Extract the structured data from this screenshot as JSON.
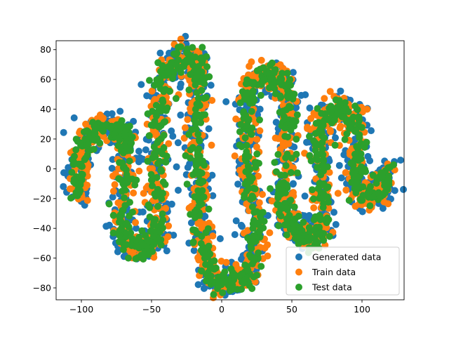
{
  "chart_data": {
    "type": "scatter",
    "title": "",
    "xlabel": "",
    "ylabel": "",
    "xlim": [
      -118,
      130
    ],
    "ylim": [
      -88,
      86
    ],
    "xticks": [
      -100,
      -50,
      0,
      50,
      100
    ],
    "yticks": [
      -80,
      -60,
      -40,
      -20,
      0,
      20,
      40,
      60,
      80
    ],
    "grid": false,
    "legend_position": "lower-right",
    "curve_path": [
      [
        -101,
        -20
      ],
      [
        -103,
        -5
      ],
      [
        -100,
        10
      ],
      [
        -95,
        22
      ],
      [
        -88,
        28
      ],
      [
        -80,
        28
      ],
      [
        -72,
        26
      ],
      [
        -68,
        18
      ],
      [
        -68,
        0
      ],
      [
        -70,
        -20
      ],
      [
        -71,
        -40
      ],
      [
        -67,
        -50
      ],
      [
        -58,
        -55
      ],
      [
        -50,
        -52
      ],
      [
        -46,
        -45
      ],
      [
        -45,
        -30
      ],
      [
        -46,
        -10
      ],
      [
        -46,
        10
      ],
      [
        -45,
        30
      ],
      [
        -43,
        50
      ],
      [
        -40,
        65
      ],
      [
        -34,
        73
      ],
      [
        -26,
        76
      ],
      [
        -19,
        73
      ],
      [
        -16,
        62
      ],
      [
        -17,
        45
      ],
      [
        -18,
        25
      ],
      [
        -17,
        5
      ],
      [
        -17,
        -15
      ],
      [
        -15,
        -40
      ],
      [
        -12,
        -60
      ],
      [
        -8,
        -73
      ],
      [
        0,
        -78
      ],
      [
        8,
        -76
      ],
      [
        18,
        -72
      ],
      [
        24,
        -60
      ],
      [
        25,
        -40
      ],
      [
        22,
        -20
      ],
      [
        20,
        0
      ],
      [
        18,
        20
      ],
      [
        18,
        40
      ],
      [
        20,
        55
      ],
      [
        27,
        62
      ],
      [
        35,
        63
      ],
      [
        43,
        60
      ],
      [
        47,
        50
      ],
      [
        47,
        30
      ],
      [
        46,
        10
      ],
      [
        44,
        -10
      ],
      [
        44,
        -25
      ],
      [
        48,
        -38
      ],
      [
        55,
        -45
      ],
      [
        63,
        -48
      ],
      [
        70,
        -45
      ],
      [
        72,
        -30
      ],
      [
        71,
        -10
      ],
      [
        70,
        10
      ],
      [
        70,
        25
      ],
      [
        74,
        36
      ],
      [
        82,
        40
      ],
      [
        90,
        38
      ],
      [
        96,
        30
      ],
      [
        98,
        15
      ],
      [
        95,
        0
      ],
      [
        96,
        -12
      ],
      [
        103,
        -20
      ],
      [
        112,
        -16
      ],
      [
        117,
        -8
      ],
      [
        119,
        0
      ]
    ],
    "point_density": 16,
    "series": [
      {
        "name": "Generated data",
        "color": "#1f77b4",
        "spread": 5.0
      },
      {
        "name": "Train data",
        "color": "#ff7f0e",
        "spread": 4.2
      },
      {
        "name": "Test data",
        "color": "#2ca02c",
        "spread": 3.4
      }
    ]
  }
}
